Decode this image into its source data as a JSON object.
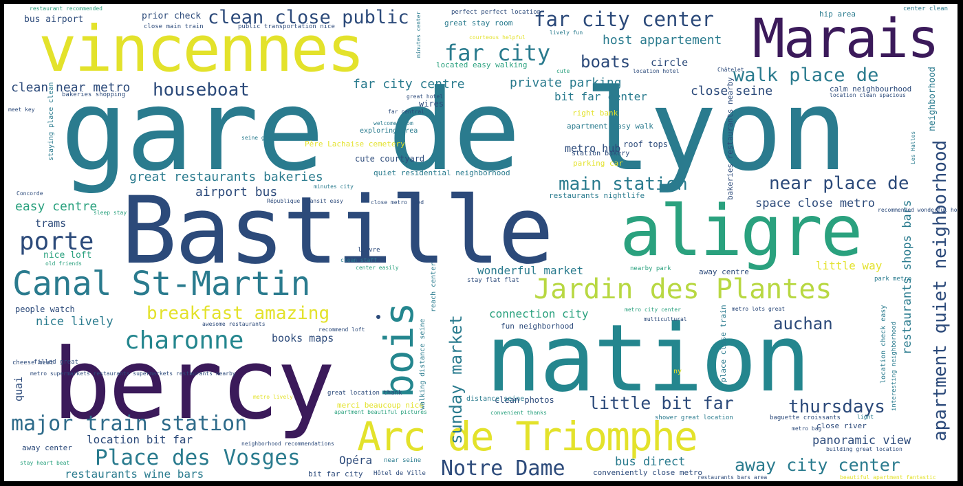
{
  "cloud": {
    "colors": {
      "dark_purple": "#3b1a5a",
      "navy": "#2c4a7a",
      "teal_blue": "#2e6b8a",
      "teal": "#24868e",
      "green_teal": "#2aa17e",
      "green": "#5ec962",
      "yellow": "#e3e22b"
    },
    "words": [
      "gare de lyon",
      "Bastille",
      "nation",
      "bercy",
      "aligre",
      "vincennes",
      "Marais",
      "Arc de Triomphe",
      "Canal St-Martin",
      "Jardin des Plantes",
      "bois",
      "charonne",
      "porte",
      "Place des Vosges",
      "major train station",
      "Notre Dame",
      "far city",
      "far city center",
      "clean close public",
      "walk place de",
      "apartment quiet neighborhood",
      "near place de",
      "main station",
      "houseboat",
      "breakfast amazing",
      "thursdays",
      "little bit far",
      "away city center",
      "auchan",
      "sunday market",
      "boats",
      "great restaurants bakeries",
      "private parking",
      "far city centre",
      "clean near metro",
      "host appartement",
      "easy centre",
      "airport bus",
      "bit far center",
      "close seine",
      "metro hub",
      "space close metro",
      "restaurants shops bars",
      "wonderful market",
      "connection city",
      "panoramic view",
      "bus direct",
      "books maps",
      "restaurants wine bars",
      "location bit far",
      "nice lively",
      "nice loft",
      "trams",
      "quai",
      "little way",
      "Opéra",
      "circle",
      "restaurants nightlife",
      "calm neighbourhood",
      "neighborhood",
      "right bank",
      "cute courtyard",
      "quiet residential neighborhood",
      "Père Lachaise cemetery",
      "parking car",
      "merci beaucoup nice",
      "fun neighborhood",
      "wires",
      "roof tops",
      "apartment easy walk",
      "bakeries restaurants nearby",
      "walking distance seine",
      "prior check",
      "bus airport",
      "hip area",
      "center clean",
      "great stay room",
      "located easy walking",
      "exploring area",
      "station bakery",
      "conveniently close metro",
      "clean photos",
      "bit far city",
      "Hôtel de Ville",
      "near seine",
      "metro lively",
      "restaurants bars area",
      "beautiful apartment fantastic",
      "shower great location",
      "baguette croissants",
      "close river",
      "location check easy",
      "interesting neighborhood",
      "great location thank",
      "distance seine",
      "metro supermarkets restaurants supermarkets restaurants nearby",
      "filled great",
      "cheese meat",
      "awesome restaurants",
      "recommend loft",
      "people watch",
      "old friends",
      "stay flat flat",
      "park metro",
      "nearby park",
      "away centre",
      "location hotel",
      "Châtelet",
      "cute",
      "lively fun",
      "courteous helpful",
      "perfect perfect location",
      "close main train",
      "public transportation nice",
      "restaurant recommended",
      "minutes center",
      "bakeries shopping",
      "great hotel",
      "far central",
      "welcome room",
      "seine great",
      "staying place clean",
      "meet key",
      "Concorde",
      "sleep stay",
      "minutes city",
      "République transit easy",
      "close metro need",
      "louvre",
      "clean staff",
      "center easily",
      "reach center",
      "recommended wonderful host",
      "metro city center",
      "multicultural",
      "metro lots great",
      "place close train",
      "ny",
      "light",
      "building great location",
      "metro bag",
      "convenient thanks",
      "apartment beautiful pictures",
      "neighborhood recommendations",
      "stay heart beat",
      "away center",
      "Les Halles",
      "location clean spacious"
    ]
  }
}
